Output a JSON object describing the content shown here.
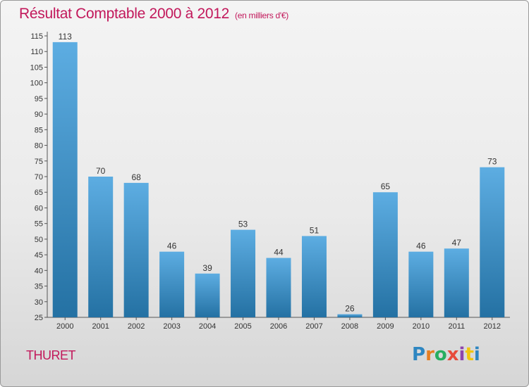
{
  "header": {
    "title": "Résultat Comptable 2000 à 2012",
    "subtitle": "(en milliers d'€)"
  },
  "footer": {
    "commune": "THURET",
    "logo_text": "Proxiti",
    "logo_colors": [
      "#2e86c1",
      "#e67e22",
      "#27ae60",
      "#e74c3c",
      "#8e44ad",
      "#f1c40f",
      "#2e86c1"
    ]
  },
  "colors": {
    "title": "#c2185b",
    "bar_light": "#5dade2",
    "bar_dark": "#2471a3",
    "grid": "#cccccc"
  },
  "chart_data": {
    "type": "bar",
    "title": "Résultat Comptable 2000 à 2012",
    "subtitle": "(en milliers d'€)",
    "xlabel": "",
    "ylabel": "",
    "categories": [
      "2000",
      "2001",
      "2002",
      "2003",
      "2004",
      "2005",
      "2006",
      "2007",
      "2008",
      "2009",
      "2010",
      "2011",
      "2012"
    ],
    "values": [
      113,
      70,
      68,
      46,
      39,
      53,
      44,
      51,
      26,
      65,
      46,
      47,
      73
    ],
    "ylim": [
      25,
      115
    ],
    "yticks": [
      25,
      30,
      35,
      40,
      45,
      50,
      55,
      60,
      65,
      70,
      75,
      80,
      85,
      90,
      95,
      100,
      105,
      110,
      115
    ],
    "grid": false,
    "legend": "none"
  }
}
